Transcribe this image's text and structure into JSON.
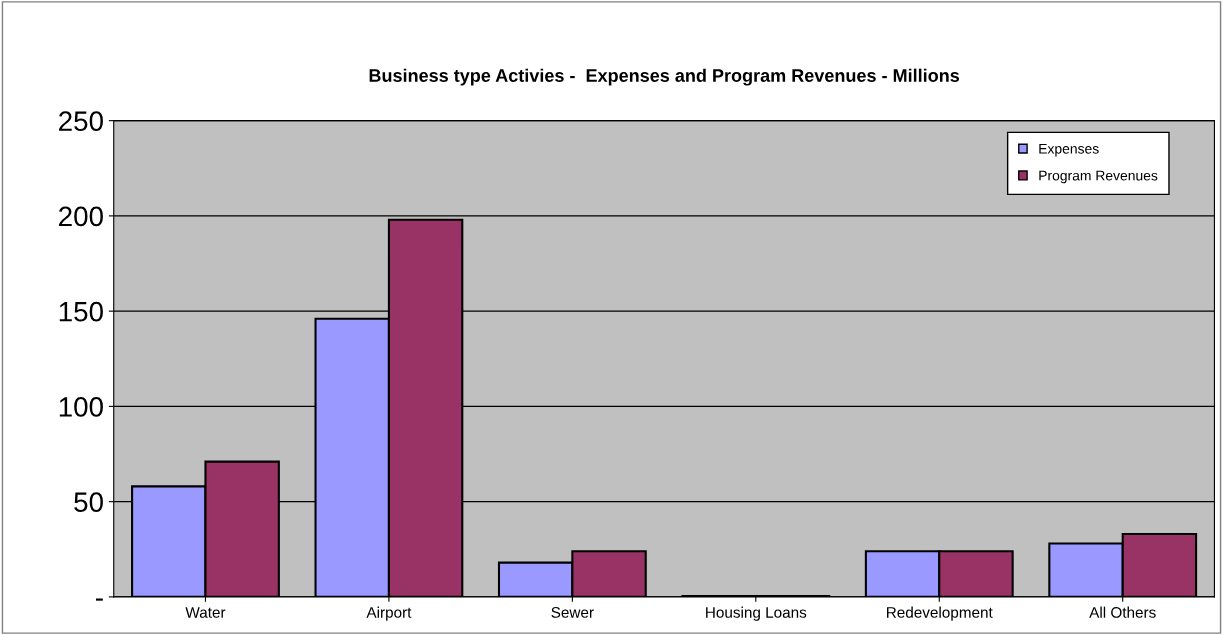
{
  "chart_data": {
    "type": "bar",
    "title": "Business type Activies -  Expenses and Program Revenues - Millions",
    "categories": [
      "Water",
      "Airport",
      "Sewer",
      "Housing Loans",
      "Redevelopment",
      "All Others"
    ],
    "series": [
      {
        "name": "Expenses",
        "color": "#9999ff",
        "values": [
          58,
          146,
          18,
          0.5,
          24,
          28
        ]
      },
      {
        "name": "Program Revenues",
        "color": "#993366",
        "values": [
          71,
          198,
          24,
          0.5,
          24,
          33
        ]
      }
    ],
    "ylim": [
      0,
      250
    ],
    "yticks": [
      {
        "value": 0,
        "label": "-"
      },
      50,
      100,
      150,
      200,
      250
    ],
    "grid": "y",
    "legend": "top right"
  }
}
